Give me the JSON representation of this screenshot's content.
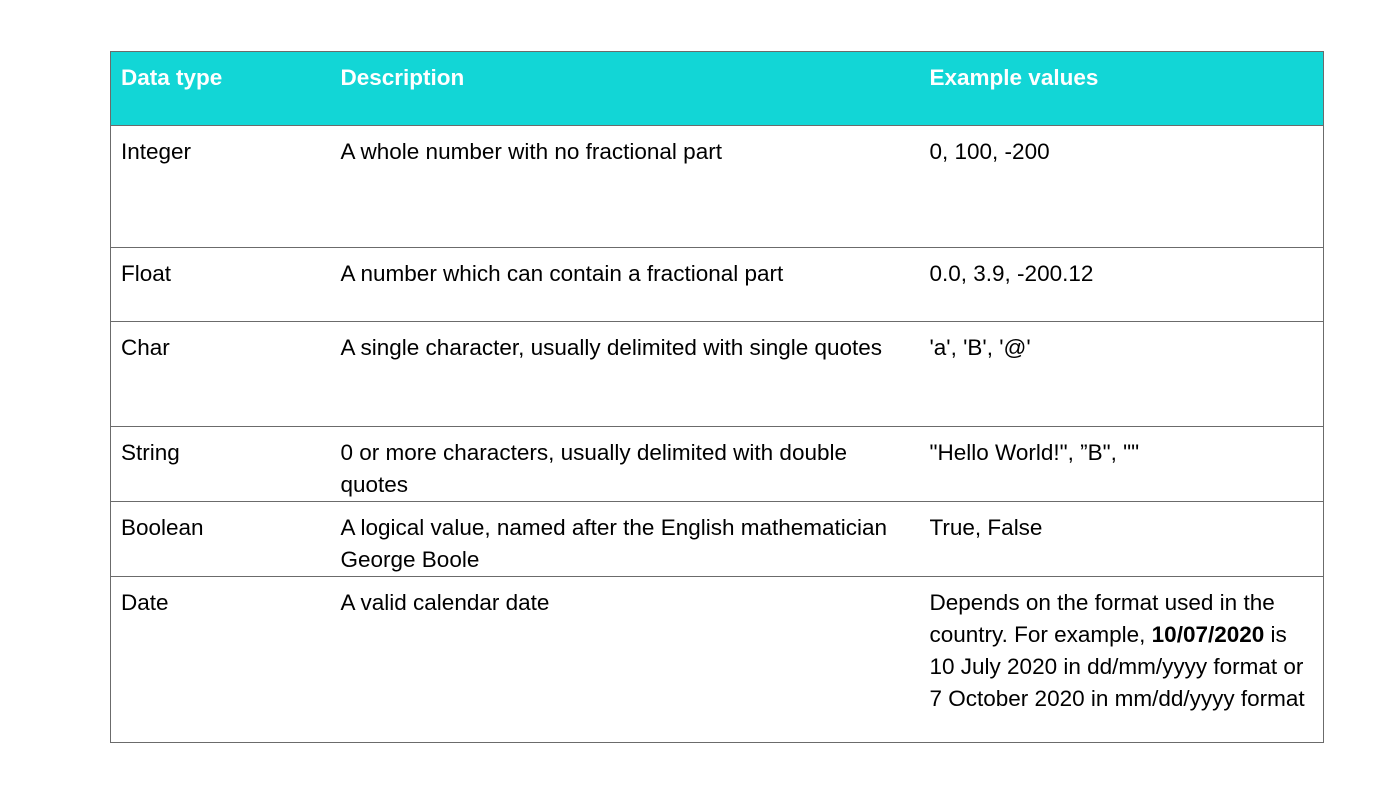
{
  "table": {
    "headers": [
      "Data type",
      "Description",
      "Example values"
    ],
    "rows": [
      {
        "type": "Integer",
        "description": "A whole number with no fractional part",
        "examples": "0, 100, -200"
      },
      {
        "type": "Float",
        "description": "A number which can contain a fractional part",
        "examples": "0.0, 3.9, -200.12"
      },
      {
        "type": "Char",
        "description": "A single character, usually delimited with single quotes",
        "examples": "'a', 'B', '@'"
      },
      {
        "type": "String",
        "description": "0 or more characters, usually delimited with double quotes",
        "examples": "\"Hello World!\", ”B\", \"\""
      },
      {
        "type": "Boolean",
        "description": "A logical value, named after the English mathematician George Boole",
        "examples": "True, False"
      },
      {
        "type": "Date",
        "description": "A valid calendar date",
        "examples_parts": {
          "before": "Depends on the format used in the country. For example, ",
          "bold": "10/07/2020",
          "after": " is 10 July 2020 in dd/mm/yyyy format or 7 October 2020 in mm/dd/yyyy format"
        }
      }
    ]
  },
  "colors": {
    "header_bg": "#12d6d6",
    "header_text": "#ffffff",
    "border": "#6b6b6b"
  }
}
